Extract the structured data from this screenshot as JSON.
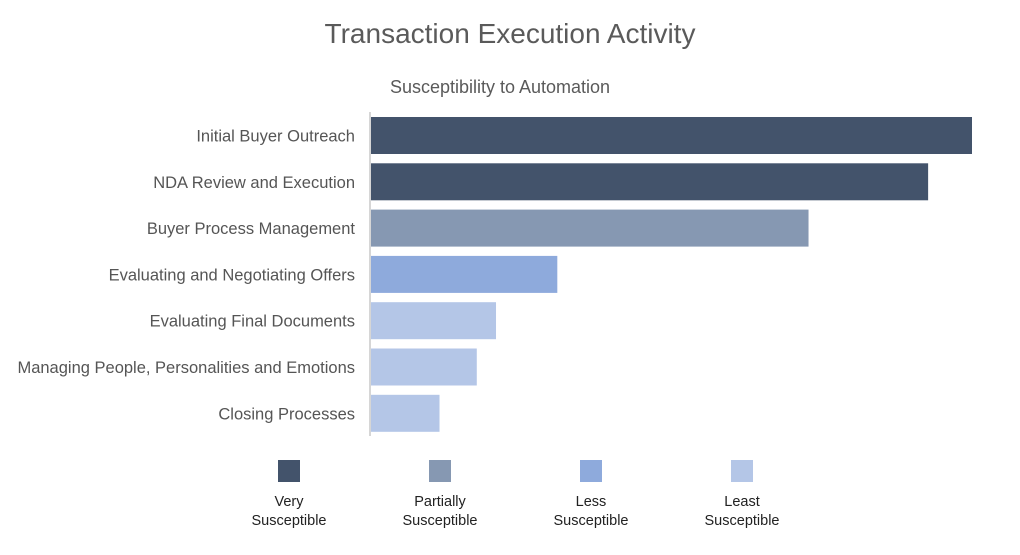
{
  "chart_data": {
    "type": "bar",
    "orientation": "horizontal",
    "title": "Transaction Execution Activity",
    "subtitle": "Susceptibility to Automation",
    "categories": [
      "Initial Buyer Outreach",
      "NDA Review and Execution",
      "Buyer Process Management",
      "Evaluating and Negotiating Offers",
      "Evaluating Final Documents",
      "Managing People, Personalities and Emotions",
      "Closing Processes"
    ],
    "values": [
      100,
      92.7,
      72.8,
      31,
      20.8,
      17.6,
      11.4
    ],
    "levels": [
      "very",
      "very",
      "partially",
      "less",
      "least",
      "least",
      "least"
    ],
    "xlim": [
      0,
      100
    ],
    "grid": false,
    "legend_position": "bottom",
    "legend": [
      {
        "key": "very",
        "line1": "Very",
        "line2": "Susceptible",
        "color": "#43536b"
      },
      {
        "key": "partially",
        "line1": "Partially",
        "line2": "Susceptible",
        "color": "#8698b2"
      },
      {
        "key": "less",
        "line1": "Less",
        "line2": "Susceptible",
        "color": "#8eaadc"
      },
      {
        "key": "least",
        "line1": "Least",
        "line2": "Susceptible",
        "color": "#b4c6e7"
      }
    ]
  }
}
